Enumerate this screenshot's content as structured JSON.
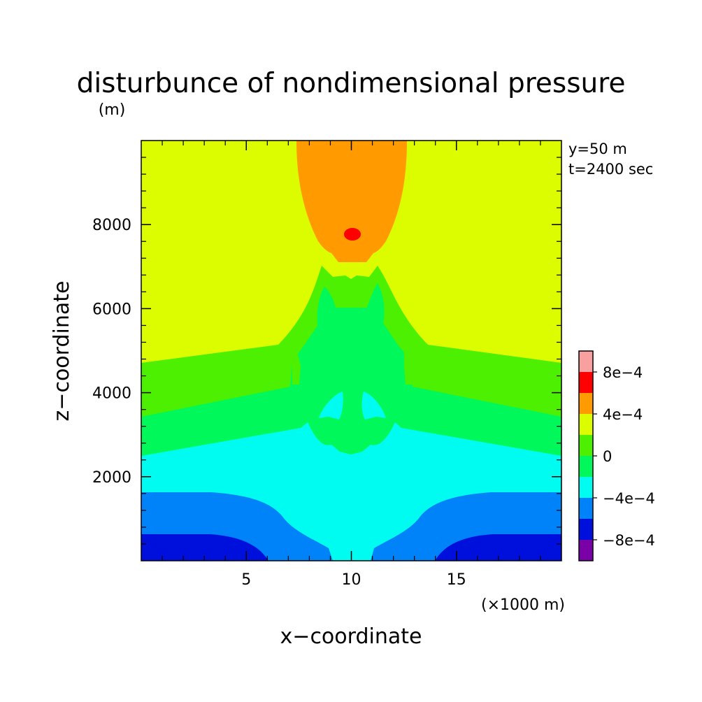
{
  "chart_data": {
    "type": "heatmap",
    "title": "disturbunce of nondimensional pressure",
    "ylabel": "z−coordinate",
    "yunit": "(m)",
    "xlabel": "x−coordinate",
    "xunit": "(×1000 m)",
    "xlim": [
      0,
      20
    ],
    "ylim": [
      0,
      10000
    ],
    "xticks": [
      5,
      10,
      15
    ],
    "xtick_labels": [
      "5",
      "10",
      "15"
    ],
    "yticks": [
      2000,
      4000,
      6000,
      8000
    ],
    "ytick_labels": [
      "2000",
      "4000",
      "6000",
      "8000"
    ],
    "annotations": [
      "y=50 m",
      "t=2400 sec"
    ],
    "colorbar": {
      "labels": [
        "8e−4",
        "4e−4",
        "0",
        "−4e−4",
        "−8e−4"
      ],
      "label_values": [
        0.0008,
        0.0004,
        0,
        -0.0004,
        -0.0008
      ],
      "levels": [
        -0.001,
        -0.0008,
        -0.0006,
        -0.0004,
        -0.0002,
        0,
        0.0002,
        0.0004,
        0.0006,
        0.0008,
        0.001
      ],
      "colors": [
        "#7a00a8",
        "#0010dc",
        "#0082f8",
        "#00fcf0",
        "#00f85a",
        "#4cf000",
        "#dcfc00",
        "#ff9a00",
        "#ff0000",
        "#f8a0a0"
      ]
    },
    "regions": [
      {
        "name": "0.0004 to 0.0006",
        "color": "#ff9a00",
        "x": [
          7.4,
          12.6
        ],
        "z": [
          7100,
          10000
        ]
      },
      {
        "name": "0.0006 to 0.0008",
        "color": "#ff0000",
        "x": [
          9.6,
          10.4
        ],
        "z": [
          7550,
          7900
        ]
      },
      {
        "name": "0 to 0.0002",
        "color": "#4cf000",
        "x": [
          0,
          20
        ],
        "z": [
          3400,
          7000
        ]
      },
      {
        "name": "-0.0002 to 0",
        "color": "#00f85a",
        "x": [
          0,
          20
        ],
        "z": [
          2500,
          6500
        ]
      },
      {
        "name": "-0.0004 to -0.0002",
        "color": "#00fcf0",
        "x": [
          0,
          20
        ],
        "z": [
          0,
          3300
        ]
      },
      {
        "name": "-0.0006 to -0.0004",
        "color": "#0082f8",
        "x": [
          0,
          20
        ],
        "z": [
          0,
          1650
        ]
      },
      {
        "name": "-0.0008 to -0.0006",
        "color": "#0010dc",
        "x": [
          0,
          20
        ],
        "z": [
          0,
          650
        ]
      }
    ]
  }
}
